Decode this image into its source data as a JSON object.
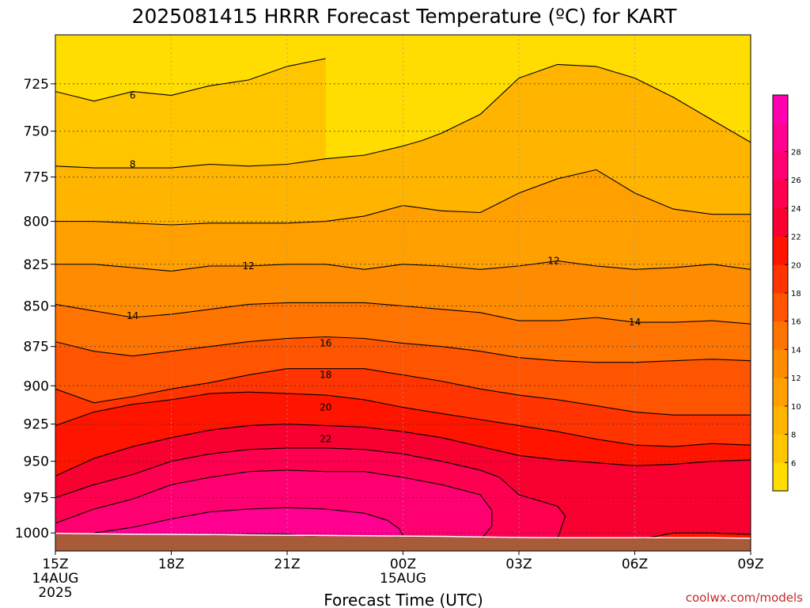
{
  "chart_data": {
    "type": "heatmap",
    "title": "2025081415 HRRR Forecast Temperature (ºC) for KART",
    "xlabel": "Forecast Time (UTC)",
    "ylabel": "",
    "x_range": [
      "15Z 14AUG 2025",
      "09Z 15AUG 2025"
    ],
    "y_range_hpa": [
      1013,
      700
    ],
    "y_scale": "pressure (reversed, hPa)",
    "x_ticks": [
      {
        "hour": 0,
        "lines": [
          "15Z",
          "14AUG",
          "2025"
        ]
      },
      {
        "hour": 3,
        "lines": [
          "18Z"
        ]
      },
      {
        "hour": 6,
        "lines": [
          "21Z"
        ]
      },
      {
        "hour": 9,
        "lines": [
          "00Z",
          "15AUG"
        ]
      },
      {
        "hour": 12,
        "lines": [
          "03Z"
        ]
      },
      {
        "hour": 15,
        "lines": [
          "06Z"
        ]
      },
      {
        "hour": 18,
        "lines": [
          "09Z"
        ]
      }
    ],
    "y_ticks": [
      725,
      750,
      775,
      800,
      825,
      850,
      875,
      900,
      925,
      950,
      975,
      1000
    ],
    "grid": true,
    "colorbar": {
      "placement": "right",
      "min": 4,
      "max": 30,
      "step": 2,
      "labels": [
        6,
        8,
        10,
        12,
        14,
        16,
        18,
        20,
        22,
        24,
        26,
        28
      ],
      "colors": [
        "#ffdd00",
        "#ffc600",
        "#ffb400",
        "#ffa000",
        "#ff8c00",
        "#ff7400",
        "#ff5400",
        "#ff3400",
        "#ff1400",
        "#f80030",
        "#ff0050",
        "#ff0070",
        "#ff0090",
        "#ff00b0"
      ]
    },
    "contour_levels": [
      6,
      8,
      10,
      12,
      14,
      16,
      18,
      20,
      22,
      24,
      26,
      28
    ],
    "contour_labels": [
      {
        "value": 6,
        "hour": 2.0,
        "hpa": 731
      },
      {
        "value": 8,
        "hour": 2.0,
        "hpa": 768
      },
      {
        "value": 12,
        "hour": 5.0,
        "hpa": 826
      },
      {
        "value": 12,
        "hour": 12.9,
        "hpa": 823
      },
      {
        "value": 14,
        "hour": 2.0,
        "hpa": 856
      },
      {
        "value": 14,
        "hour": 15.0,
        "hpa": 860
      },
      {
        "value": 16,
        "hour": 7.0,
        "hpa": 873
      },
      {
        "value": 18,
        "hour": 7.0,
        "hpa": 893
      },
      {
        "value": 20,
        "hour": 7.0,
        "hpa": 914
      },
      {
        "value": 22,
        "hour": 7.0,
        "hpa": 935
      }
    ],
    "isotherms": [
      {
        "level": 6,
        "points": [
          [
            0,
            729
          ],
          [
            1,
            734
          ],
          [
            2,
            729
          ],
          [
            3,
            731
          ],
          [
            4,
            726
          ],
          [
            5,
            723
          ],
          [
            6,
            716
          ],
          [
            7,
            712
          ]
        ]
      },
      {
        "level": 8,
        "points": [
          [
            0,
            769
          ],
          [
            1,
            770
          ],
          [
            2,
            770
          ],
          [
            3,
            770
          ],
          [
            4,
            768
          ],
          [
            5,
            769
          ],
          [
            6,
            768
          ],
          [
            7,
            765
          ],
          [
            8,
            763
          ],
          [
            9,
            758
          ],
          [
            9.5,
            755
          ],
          [
            10,
            751
          ],
          [
            11,
            741
          ],
          [
            12,
            722
          ],
          [
            13,
            715
          ],
          [
            14,
            716
          ],
          [
            15,
            722
          ],
          [
            16,
            732
          ],
          [
            17,
            744
          ],
          [
            18,
            756
          ]
        ]
      },
      {
        "level": 10,
        "points": [
          [
            0,
            800
          ],
          [
            1,
            800
          ],
          [
            2,
            801
          ],
          [
            3,
            802
          ],
          [
            4,
            801
          ],
          [
            5,
            801
          ],
          [
            6,
            801
          ],
          [
            7,
            800
          ],
          [
            8,
            797
          ],
          [
            9,
            791
          ],
          [
            10,
            794
          ],
          [
            11,
            795
          ],
          [
            12,
            784
          ],
          [
            13,
            776
          ],
          [
            14,
            771
          ],
          [
            15,
            784
          ],
          [
            16,
            793
          ],
          [
            17,
            796
          ],
          [
            18,
            796
          ]
        ]
      },
      {
        "level": 12,
        "points": [
          [
            0,
            825
          ],
          [
            1,
            825
          ],
          [
            2,
            827
          ],
          [
            3,
            829
          ],
          [
            4,
            826
          ],
          [
            5,
            826
          ],
          [
            6,
            825
          ],
          [
            7,
            825
          ],
          [
            8,
            828
          ],
          [
            9,
            825
          ],
          [
            10,
            826
          ],
          [
            11,
            828
          ],
          [
            12,
            826
          ],
          [
            13,
            823
          ],
          [
            14,
            826
          ],
          [
            15,
            828
          ],
          [
            16,
            827
          ],
          [
            17,
            825
          ],
          [
            18,
            828
          ]
        ]
      },
      {
        "level": 14,
        "points": [
          [
            0,
            849
          ],
          [
            1,
            853
          ],
          [
            2,
            857
          ],
          [
            3,
            855
          ],
          [
            4,
            852
          ],
          [
            5,
            849
          ],
          [
            6,
            848
          ],
          [
            7,
            848
          ],
          [
            8,
            848
          ],
          [
            9,
            850
          ],
          [
            10,
            852
          ],
          [
            11,
            854
          ],
          [
            12,
            859
          ],
          [
            13,
            859
          ],
          [
            14,
            857
          ],
          [
            15,
            860
          ],
          [
            16,
            860
          ],
          [
            17,
            859
          ],
          [
            18,
            861
          ]
        ]
      },
      {
        "level": 16,
        "points": [
          [
            0,
            872
          ],
          [
            1,
            878
          ],
          [
            2,
            881
          ],
          [
            3,
            878
          ],
          [
            4,
            875
          ],
          [
            5,
            872
          ],
          [
            6,
            870
          ],
          [
            7,
            869
          ],
          [
            8,
            870
          ],
          [
            9,
            873
          ],
          [
            10,
            875
          ],
          [
            11,
            878
          ],
          [
            12,
            882
          ],
          [
            13,
            884
          ],
          [
            14,
            885
          ],
          [
            15,
            885
          ],
          [
            16,
            884
          ],
          [
            17,
            883
          ],
          [
            18,
            884
          ]
        ]
      },
      {
        "level": 18,
        "points": [
          [
            0,
            902
          ],
          [
            1,
            911
          ],
          [
            2,
            907
          ],
          [
            3,
            902
          ],
          [
            4,
            898
          ],
          [
            5,
            893
          ],
          [
            6,
            889
          ],
          [
            7,
            889
          ],
          [
            8,
            889
          ],
          [
            9,
            893
          ],
          [
            10,
            897
          ],
          [
            11,
            902
          ],
          [
            12,
            906
          ],
          [
            13,
            909
          ],
          [
            14,
            913
          ],
          [
            15,
            917
          ],
          [
            16,
            919
          ],
          [
            17,
            919
          ],
          [
            18,
            919
          ]
        ]
      },
      {
        "level": 20,
        "points": [
          [
            0,
            926
          ],
          [
            1,
            917
          ],
          [
            2,
            912
          ],
          [
            3,
            909
          ],
          [
            4,
            905
          ],
          [
            5,
            904
          ],
          [
            6,
            905
          ],
          [
            7,
            906
          ],
          [
            8,
            909
          ],
          [
            9,
            914
          ],
          [
            10,
            918
          ],
          [
            11,
            922
          ],
          [
            12,
            926
          ],
          [
            13,
            930
          ],
          [
            14,
            935
          ],
          [
            15,
            939
          ],
          [
            16,
            940
          ],
          [
            17,
            938
          ],
          [
            18,
            939
          ]
        ]
      },
      {
        "level": 22,
        "points": [
          [
            0,
            960
          ],
          [
            1,
            948
          ],
          [
            2,
            940
          ],
          [
            3,
            934
          ],
          [
            4,
            929
          ],
          [
            5,
            926
          ],
          [
            6,
            925
          ],
          [
            7,
            926
          ],
          [
            8,
            927
          ],
          [
            9,
            930
          ],
          [
            10,
            934
          ],
          [
            11,
            940
          ],
          [
            12,
            946
          ],
          [
            13,
            949
          ],
          [
            14,
            951
          ],
          [
            15,
            953
          ],
          [
            16,
            952
          ],
          [
            17,
            950
          ],
          [
            18,
            949
          ]
        ]
      },
      {
        "level": 24,
        "points": [
          [
            0,
            975
          ],
          [
            1,
            966
          ],
          [
            2,
            959
          ],
          [
            3,
            950
          ],
          [
            4,
            945
          ],
          [
            5,
            942
          ],
          [
            6,
            941
          ],
          [
            7,
            941
          ],
          [
            8,
            942
          ],
          [
            9,
            945
          ],
          [
            10,
            950
          ],
          [
            11,
            956
          ],
          [
            11.5,
            961
          ],
          [
            12,
            973
          ],
          [
            13,
            981
          ],
          [
            13.2,
            988
          ],
          [
            13,
            1004
          ],
          [
            12,
            1007
          ],
          [
            11,
            1009
          ]
        ]
      },
      {
        "level": 26,
        "points": [
          [
            0,
            993
          ],
          [
            1,
            983
          ],
          [
            2,
            976
          ],
          [
            3,
            966
          ],
          [
            4,
            961
          ],
          [
            5,
            957
          ],
          [
            6,
            956
          ],
          [
            7,
            957
          ],
          [
            8,
            957
          ],
          [
            9,
            961
          ],
          [
            10,
            966
          ],
          [
            11,
            973
          ],
          [
            11.3,
            984
          ],
          [
            11.3,
            995
          ],
          [
            11,
            1005
          ],
          [
            10,
            1009
          ],
          [
            9,
            1010
          ]
        ]
      },
      {
        "level": 28,
        "points": [
          [
            1,
            1000
          ],
          [
            2,
            996
          ],
          [
            3,
            990
          ],
          [
            4,
            985
          ],
          [
            5,
            983
          ],
          [
            6,
            982
          ],
          [
            7,
            983
          ],
          [
            8,
            986
          ],
          [
            8.6,
            991
          ],
          [
            8.9,
            997
          ],
          [
            9,
            1002
          ],
          [
            8,
            1006
          ],
          [
            7,
            1007
          ]
        ]
      },
      {
        "level": 30,
        "points": [
          [
            4,
            1002
          ],
          [
            5,
            1001
          ],
          [
            6,
            1001
          ],
          [
            7,
            1003
          ],
          [
            8,
            1004
          ]
        ]
      },
      {
        "level": 20,
        "points": [
          [
            14.5,
            1008
          ],
          [
            16,
            1000
          ],
          [
            17,
            1000
          ],
          [
            18,
            1001
          ]
        ]
      },
      {
        "level": 20,
        "points": [
          [
            17,
            1007
          ],
          [
            18,
            1006
          ]
        ]
      }
    ],
    "surface_hpa": [
      1000.8,
      1001.2,
      1001.4,
      1001.6,
      1001.8,
      1002.0,
      1002.2,
      1002.4,
      1002.6,
      1002.8,
      1003.0,
      1003.4,
      1003.8,
      1004.0,
      1004.0,
      1004.0,
      1004.0,
      1004.0,
      1004.4
    ]
  },
  "credit": "coolwx.com/models"
}
